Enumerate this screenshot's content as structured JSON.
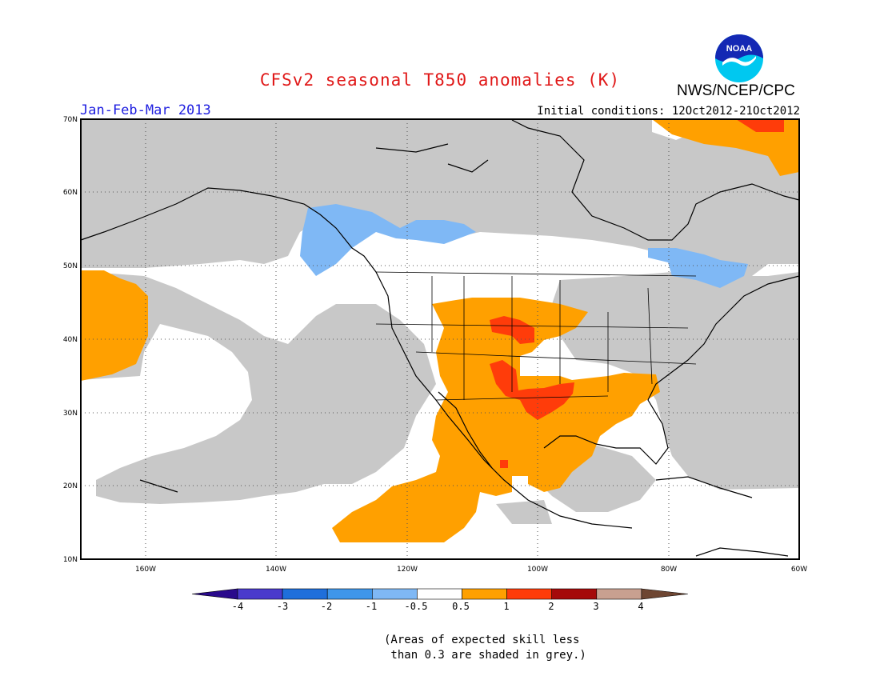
{
  "title": "CFSv2 seasonal T850 anomalies (K)",
  "period": "Jan-Feb-Mar 2013",
  "initial_conditions": "Initial conditions: 12Oct2012-21Oct2012",
  "agency": "NWS/NCEP/CPC",
  "logo_text": "NOAA",
  "axes": {
    "lat_labels": [
      "70N",
      "60N",
      "50N",
      "40N",
      "30N",
      "20N",
      "10N"
    ],
    "lon_labels": [
      "160W",
      "140W",
      "120W",
      "100W",
      "80W",
      "60W"
    ]
  },
  "colorbar": {
    "labels": [
      "-4",
      "-3",
      "-2",
      "-1",
      "-0.5",
      "0.5",
      "1",
      "2",
      "3",
      "4"
    ],
    "colors": [
      "#2a0a8c",
      "#4a3acc",
      "#1f6fdb",
      "#3f96ea",
      "#7fb8f5",
      "#ffffff",
      "#ffa000",
      "#ff3c0a",
      "#a50a0a",
      "#c8a090",
      "#6e4632"
    ]
  },
  "note": "(Areas of expected skill less\n than 0.3 are shaded in grey.)",
  "legend_colors": {
    "grey": "#c8c8c8",
    "orange": "#ffa000",
    "red": "#ff3c0a",
    "dark_red": "#dc1e0a",
    "light_blue": "#7fb8f5"
  }
}
